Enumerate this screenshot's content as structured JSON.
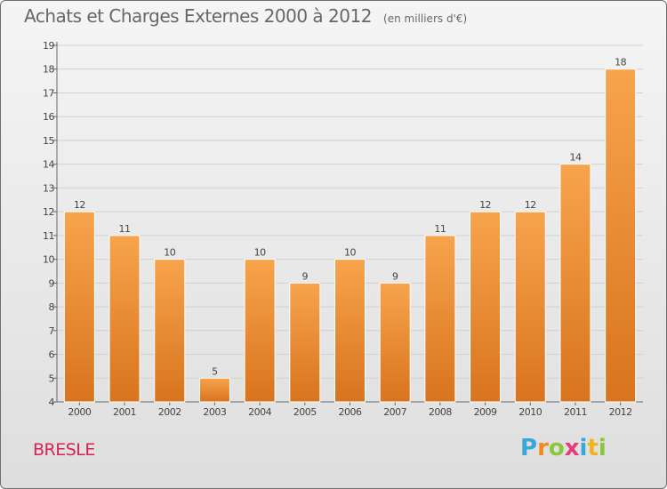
{
  "colors": {
    "bar_light": "#f7a44d",
    "bar_dark": "#d8741d",
    "axis": "#666666",
    "grid": "#d0d0d0",
    "place": "#d62355"
  },
  "place_name": "BRESLE",
  "logo": {
    "letters": [
      "P",
      "r",
      "o",
      "x",
      "i",
      "t",
      "i"
    ],
    "colors": [
      "#3aa7dc",
      "#f28a1c",
      "#8cc63f",
      "#e63b7a",
      "#3aa7dc",
      "#f2b21c",
      "#8cc63f"
    ]
  },
  "chart_data": {
    "type": "bar",
    "title": "Achats et Charges Externes 2000 à 2012",
    "subtitle": "(en milliers d'€)",
    "categories": [
      "2000",
      "2001",
      "2002",
      "2003",
      "2004",
      "2005",
      "2006",
      "2007",
      "2008",
      "2009",
      "2010",
      "2011",
      "2012"
    ],
    "values": [
      12,
      11,
      10,
      5,
      10,
      9,
      10,
      9,
      11,
      12,
      12,
      14,
      18
    ],
    "data_labels": [
      "12",
      "11",
      "10",
      "5",
      "10",
      "9",
      "10",
      "9",
      "11",
      "12",
      "12",
      "14",
      "18"
    ],
    "ylim": [
      4,
      19
    ],
    "yticks": [
      "4",
      "5",
      "6",
      "7",
      "8",
      "9",
      "10",
      "11",
      "12",
      "13",
      "14",
      "15",
      "16",
      "17",
      "18",
      "19"
    ],
    "grid": true,
    "legend": "none"
  }
}
